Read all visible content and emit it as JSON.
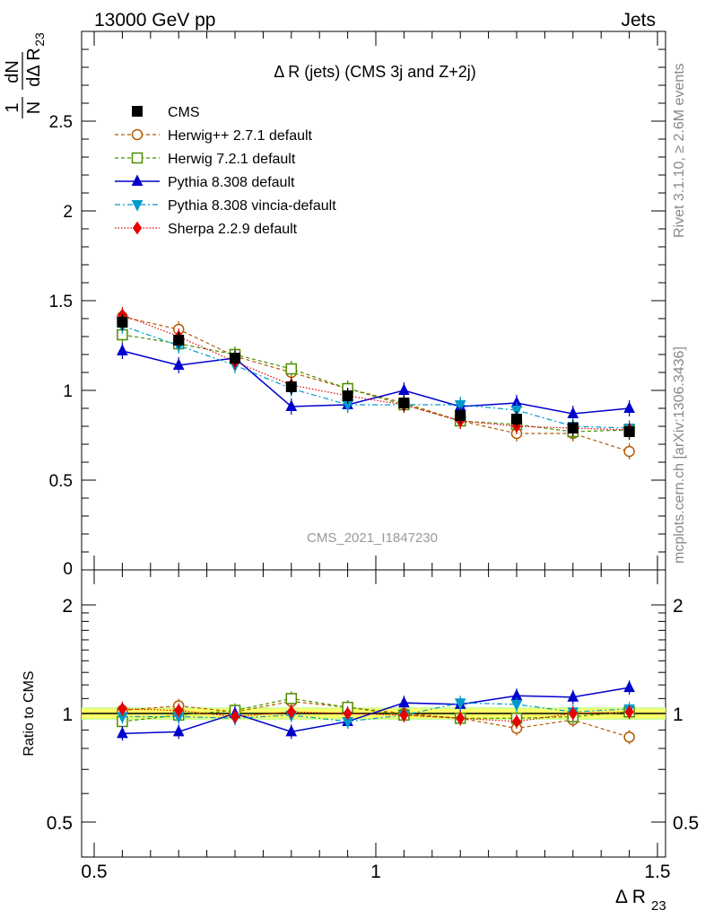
{
  "header": {
    "left": "13000 GeV pp",
    "right": "Jets"
  },
  "side_text": {
    "rivet": "Rivet 3.1.10, ≥ 2.6M events",
    "mcplots": "mcplots.cern.ch [arXiv:1306.3436]"
  },
  "watermark": "CMS_2021_I1847230",
  "colors": {
    "cms": "#000000",
    "herwigpp": "#b35900",
    "herwig7": "#4d8c00",
    "pythia": "#0000cc",
    "vincia": "#0099cc",
    "sherpa": "#e60000",
    "band_inner": "#ffff66",
    "band_outer": "#ccff99"
  },
  "chart_data": [
    {
      "type": "line",
      "title": "Δ R (jets) (CMS 3j and Z+2j)",
      "ylabel_num": "1",
      "ylabel_frac_top": "dN",
      "ylabel_frac_bottom_N": "N",
      "ylabel_frac_bottom": "dΔ R",
      "ylabel_sub": "23",
      "xlim": [
        0.5,
        1.5
      ],
      "ylim": [
        0,
        3
      ],
      "yticks": [
        "0.5",
        "1",
        "1.5",
        "2",
        "2.5"
      ],
      "ytick_zero": "0",
      "x": [
        0.55,
        0.65,
        0.75,
        0.85,
        0.95,
        1.05,
        1.15,
        1.25,
        1.35,
        1.45
      ],
      "series": [
        {
          "name": "CMS",
          "key": "cms",
          "values": [
            1.38,
            1.28,
            1.18,
            1.02,
            0.97,
            0.93,
            0.86,
            0.84,
            0.79,
            0.77
          ]
        },
        {
          "name": "Herwig++ 2.7.1 default",
          "key": "herwigpp",
          "values": [
            1.41,
            1.34,
            1.19,
            1.1,
            1.01,
            0.93,
            0.83,
            0.76,
            0.76,
            0.66
          ]
        },
        {
          "name": "Herwig 7.2.1 default",
          "key": "herwig7",
          "values": [
            1.31,
            1.26,
            1.2,
            1.12,
            1.01,
            0.92,
            0.83,
            0.81,
            0.77,
            0.78
          ]
        },
        {
          "name": "Pythia 8.308 default",
          "key": "pythia",
          "values": [
            1.22,
            1.14,
            1.18,
            0.91,
            0.92,
            1.0,
            0.91,
            0.93,
            0.87,
            0.9
          ]
        },
        {
          "name": "Pythia 8.308 vincia-default",
          "key": "vincia",
          "values": [
            1.36,
            1.25,
            1.14,
            1.01,
            0.92,
            0.92,
            0.92,
            0.89,
            0.8,
            0.79
          ]
        },
        {
          "name": "Sherpa 2.2.9 default",
          "key": "sherpa",
          "values": [
            1.42,
            1.3,
            1.16,
            1.03,
            0.97,
            0.92,
            0.83,
            0.8,
            0.79,
            0.78
          ]
        }
      ]
    },
    {
      "type": "line",
      "ylabel": "Ratio to CMS",
      "xlabel": "Δ R",
      "xlabel_sub": "23",
      "xticks": [
        "0.5",
        "1",
        "1.5"
      ],
      "xlim": [
        0.5,
        1.5
      ],
      "ylim": [
        0.375,
        2.4
      ],
      "yticks": [
        "0.5",
        "1",
        "2"
      ],
      "band": [
        0.97,
        1.03
      ],
      "x": [
        0.55,
        0.65,
        0.75,
        0.85,
        0.95,
        1.05,
        1.15,
        1.25,
        1.35,
        1.45
      ],
      "series": [
        {
          "name": "Herwig++ 2.7.1 default",
          "key": "herwigpp",
          "values": [
            1.02,
            1.05,
            1.01,
            1.08,
            1.04,
            1.0,
            0.97,
            0.91,
            0.96,
            0.86
          ]
        },
        {
          "name": "Herwig 7.2.1 default",
          "key": "herwig7",
          "values": [
            0.95,
            0.99,
            1.02,
            1.1,
            1.04,
            0.99,
            0.97,
            0.97,
            0.98,
            1.01
          ]
        },
        {
          "name": "Pythia 8.308 default",
          "key": "pythia",
          "values": [
            0.88,
            0.89,
            1.0,
            0.89,
            0.95,
            1.07,
            1.06,
            1.12,
            1.11,
            1.18
          ]
        },
        {
          "name": "Pythia 8.308 vincia-default",
          "key": "vincia",
          "values": [
            0.98,
            0.98,
            0.97,
            0.99,
            0.95,
            0.99,
            1.07,
            1.06,
            1.01,
            1.03
          ]
        },
        {
          "name": "Sherpa 2.2.9 default",
          "key": "sherpa",
          "values": [
            1.03,
            1.02,
            0.98,
            1.01,
            1.0,
            0.99,
            0.97,
            0.95,
            1.0,
            1.01
          ]
        }
      ]
    }
  ]
}
